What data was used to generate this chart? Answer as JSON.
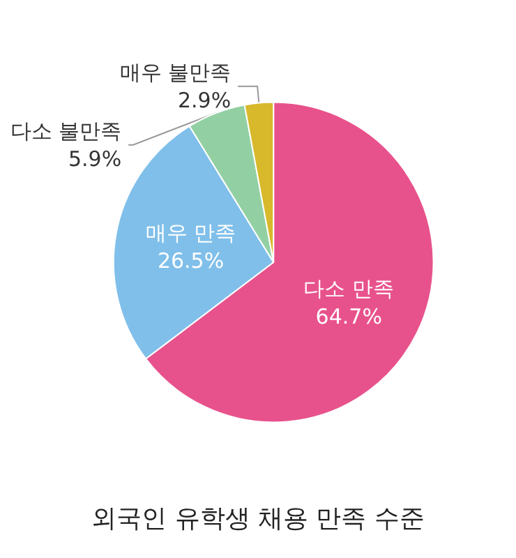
{
  "chart_data": {
    "type": "pie",
    "title": "외국인 유학생 채용 만족 수준",
    "categories": [
      "다소 만족",
      "매우 만족",
      "다소 불만족",
      "매우 불만족"
    ],
    "values": [
      64.7,
      26.5,
      5.9,
      2.9
    ],
    "value_labels": [
      "64.7%",
      "26.5%",
      "5.9%",
      "2.9%"
    ],
    "colors": [
      "#e8528c",
      "#80bfea",
      "#92d0a4",
      "#d8b92c"
    ],
    "legend": false
  }
}
